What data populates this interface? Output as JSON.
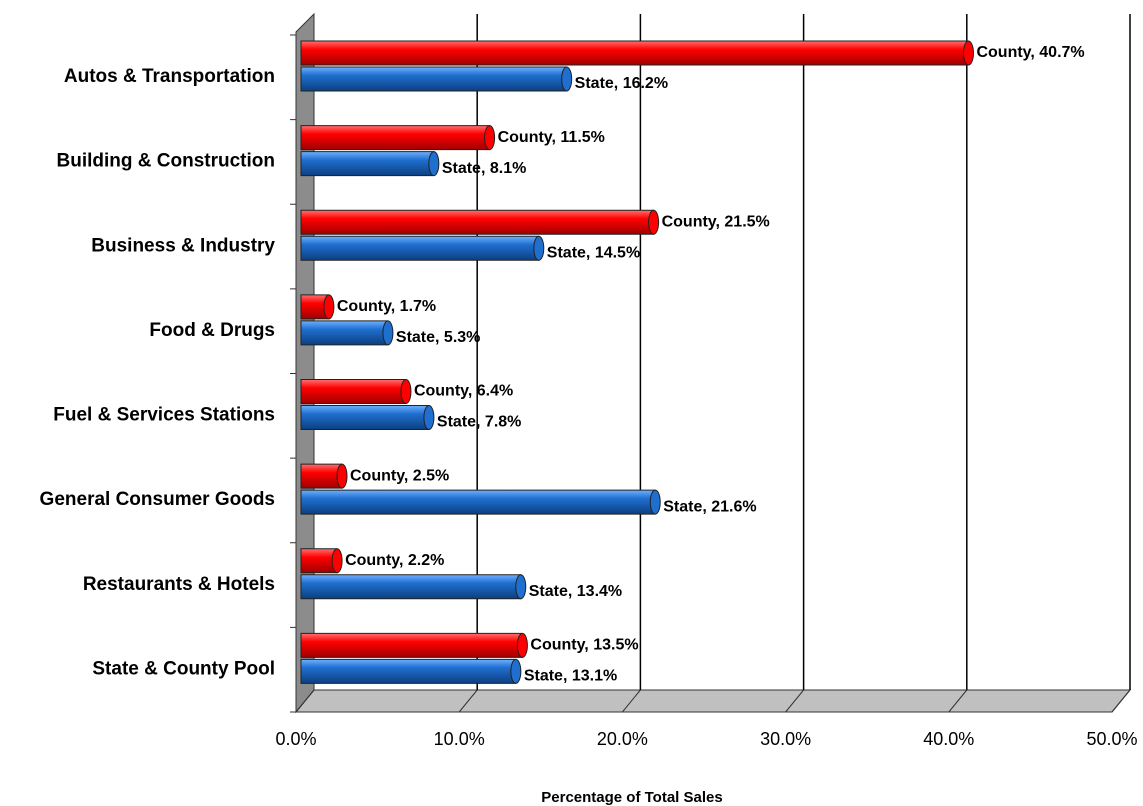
{
  "chart_data": {
    "type": "bar",
    "orientation": "horizontal",
    "x_label": "Percentage of Total Sales",
    "categories": [
      "Autos & Transportation",
      "Building & Construction",
      "Business & Industry",
      "Food & Drugs",
      "Fuel & Services Stations",
      "General Consumer Goods",
      "Restaurants & Hotels",
      "State & County Pool"
    ],
    "series": [
      {
        "name": "County",
        "color": "#ff0000",
        "values": [
          40.7,
          11.5,
          21.5,
          1.7,
          6.4,
          2.5,
          2.2,
          13.5
        ],
        "value_labels": [
          "County, 40.7%",
          "County, 11.5%",
          "County, 21.5%",
          "County, 1.7%",
          "County, 6.4%",
          "County, 2.5%",
          "County, 2.2%",
          "County, 13.5%"
        ]
      },
      {
        "name": "State",
        "color": "#1f6fd0",
        "values": [
          16.2,
          8.1,
          14.5,
          5.3,
          7.8,
          21.6,
          13.4,
          13.1
        ],
        "value_labels": [
          "State, 16.2%",
          "State, 8.1%",
          "State, 14.5%",
          "State, 5.3%",
          "State, 7.8%",
          "State, 21.6%",
          "State, 13.4%",
          "State, 13.1%"
        ]
      }
    ],
    "xlim": [
      0,
      50
    ],
    "xticks": [
      {
        "value": 0,
        "label": "0.0%"
      },
      {
        "value": 10,
        "label": "10.0%"
      },
      {
        "value": 20,
        "label": "20.0%"
      },
      {
        "value": 30,
        "label": "30.0%"
      },
      {
        "value": 40,
        "label": "40.0%"
      },
      {
        "value": 50,
        "label": "50.0%"
      }
    ],
    "grid": true
  }
}
